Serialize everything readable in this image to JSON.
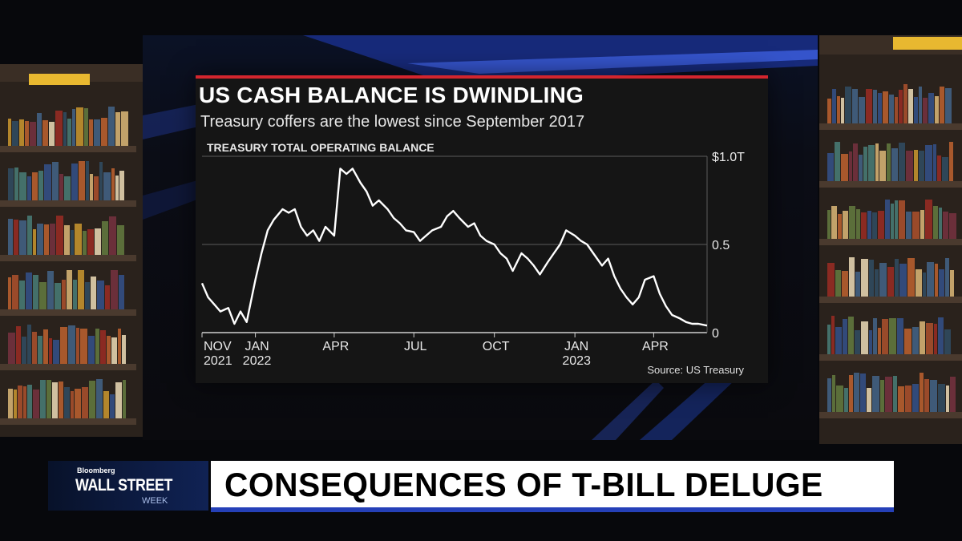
{
  "broadcast": {
    "headline": "CONSEQUENCES OF T-BILL DELUGE",
    "logo_top": "Bloomberg",
    "logo_main": "WALL STREET",
    "logo_sub": "WEEK",
    "accent_blue": "#2540b8",
    "accent_red": "#d3252e"
  },
  "chart_data": {
    "type": "line",
    "title": "US CASH BALANCE IS DWINDLING",
    "subtitle": "Treasury coffers are the lowest since September 2017",
    "panel_label": "TREASURY TOTAL OPERATING BALANCE",
    "source": "Source: US Treasury",
    "y_axis_side": "right",
    "ylim": [
      0,
      1.0
    ],
    "y_ticks": [
      {
        "value": 1.0,
        "label": "$1.0T"
      },
      {
        "value": 0.5,
        "label": "0.5"
      },
      {
        "value": 0,
        "label": "0"
      }
    ],
    "xlim": [
      "2021-11-01",
      "2023-06-01"
    ],
    "x_ticks": [
      {
        "date": "2021-11-01",
        "line1": "NOV",
        "line2": "2021"
      },
      {
        "date": "2022-01-01",
        "line1": "JAN",
        "line2": "2022"
      },
      {
        "date": "2022-04-01",
        "line1": "APR",
        "line2": ""
      },
      {
        "date": "2022-07-01",
        "line1": "JUL",
        "line2": ""
      },
      {
        "date": "2022-10-01",
        "line1": "OCT",
        "line2": ""
      },
      {
        "date": "2023-01-01",
        "line1": "JAN",
        "line2": "2023"
      },
      {
        "date": "2023-04-01",
        "line1": "APR",
        "line2": ""
      }
    ],
    "grid": true,
    "line_color": "#ffffff",
    "series": [
      {
        "x": [
          "2021-11-01",
          "2021-11-08",
          "2021-11-15",
          "2021-11-22",
          "2021-12-01",
          "2021-12-08",
          "2021-12-15",
          "2021-12-22",
          "2022-01-01",
          "2022-01-08",
          "2022-01-15",
          "2022-01-22",
          "2022-02-01",
          "2022-02-08",
          "2022-02-15",
          "2022-02-22",
          "2022-03-01",
          "2022-03-08",
          "2022-03-15",
          "2022-03-22",
          "2022-04-01",
          "2022-04-08",
          "2022-04-15",
          "2022-04-22",
          "2022-05-01",
          "2022-05-08",
          "2022-05-15",
          "2022-05-22",
          "2022-06-01",
          "2022-06-08",
          "2022-06-15",
          "2022-06-22",
          "2022-07-01",
          "2022-07-08",
          "2022-07-15",
          "2022-07-22",
          "2022-08-01",
          "2022-08-08",
          "2022-08-15",
          "2022-08-22",
          "2022-09-01",
          "2022-09-08",
          "2022-09-15",
          "2022-09-22",
          "2022-10-01",
          "2022-10-08",
          "2022-10-15",
          "2022-10-22",
          "2022-11-01",
          "2022-11-08",
          "2022-11-15",
          "2022-11-22",
          "2022-12-01",
          "2022-12-08",
          "2022-12-15",
          "2022-12-22",
          "2023-01-01",
          "2023-01-08",
          "2023-01-15",
          "2023-01-22",
          "2023-02-01",
          "2023-02-08",
          "2023-02-15",
          "2023-02-22",
          "2023-03-01",
          "2023-03-08",
          "2023-03-15",
          "2023-03-22",
          "2023-04-01",
          "2023-04-08",
          "2023-04-15",
          "2023-04-22",
          "2023-05-01",
          "2023-05-08",
          "2023-05-15",
          "2023-05-22",
          "2023-06-01"
        ],
        "values": [
          0.28,
          0.2,
          0.16,
          0.12,
          0.14,
          0.05,
          0.12,
          0.06,
          0.3,
          0.45,
          0.58,
          0.64,
          0.7,
          0.68,
          0.7,
          0.6,
          0.55,
          0.58,
          0.52,
          0.6,
          0.55,
          0.93,
          0.9,
          0.93,
          0.85,
          0.8,
          0.72,
          0.75,
          0.7,
          0.65,
          0.62,
          0.58,
          0.57,
          0.52,
          0.55,
          0.58,
          0.6,
          0.66,
          0.69,
          0.65,
          0.6,
          0.62,
          0.55,
          0.52,
          0.5,
          0.45,
          0.42,
          0.35,
          0.45,
          0.42,
          0.38,
          0.33,
          0.4,
          0.45,
          0.5,
          0.58,
          0.55,
          0.52,
          0.5,
          0.45,
          0.38,
          0.42,
          0.32,
          0.25,
          0.2,
          0.16,
          0.2,
          0.3,
          0.32,
          0.22,
          0.15,
          0.1,
          0.08,
          0.06,
          0.05,
          0.05,
          0.04
        ]
      }
    ]
  }
}
